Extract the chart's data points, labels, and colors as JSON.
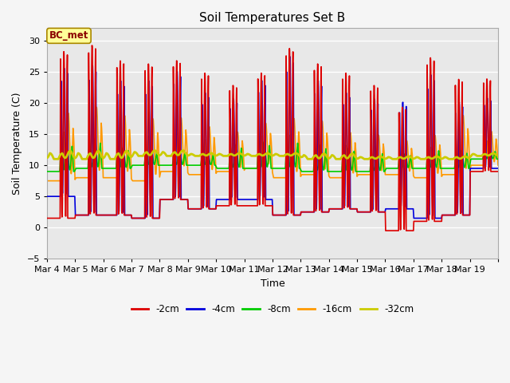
{
  "title": "Soil Temperatures Set B",
  "xlabel": "Time",
  "ylabel": "Soil Temperature (C)",
  "ylim": [
    -5,
    32
  ],
  "yticks": [
    -5,
    0,
    5,
    10,
    15,
    20,
    25,
    30
  ],
  "date_labels": [
    "Mar 4",
    "Mar 5",
    "Mar 6",
    "Mar 7",
    "Mar 8",
    "Mar 9",
    "Mar 10",
    "Mar 11",
    "Mar 12",
    "Mar 13",
    "Mar 14",
    "Mar 15",
    "Mar 16",
    "Mar 17",
    "Mar 18",
    "Mar 19"
  ],
  "n_days": 16,
  "legend_entries": [
    "-2cm",
    "-4cm",
    "-8cm",
    "-16cm",
    "-32cm"
  ],
  "line_colors": [
    "#dd0000",
    "#0000dd",
    "#00cc00",
    "#ff9900",
    "#cccc00"
  ],
  "bg_color": "#f5f5f5",
  "plot_bg_color": "#e8e8e8",
  "title_fontsize": 11,
  "label_fontsize": 9,
  "tick_fontsize": 8,
  "annotation_text": "BC_met",
  "peaks_2cm": [
    28.5,
    29.5,
    27.0,
    26.5,
    27.0,
    25.0,
    23.0,
    25.0,
    29.0,
    26.5,
    25.0,
    23.0,
    19.5,
    27.5,
    24.0,
    24.0
  ],
  "mins_2cm": [
    1.5,
    2.0,
    2.0,
    1.5,
    4.5,
    3.0,
    3.5,
    3.5,
    2.0,
    2.5,
    3.0,
    2.5,
    -0.5,
    1.0,
    2.0,
    9.0
  ],
  "peaks_4cm": [
    26.0,
    26.5,
    24.0,
    24.0,
    25.5,
    22.0,
    21.0,
    24.0,
    28.0,
    24.0,
    22.0,
    21.0,
    20.5,
    25.0,
    20.5,
    21.0
  ],
  "mins_4cm": [
    5.0,
    2.0,
    2.0,
    1.5,
    4.5,
    3.0,
    4.5,
    4.5,
    2.0,
    2.5,
    3.0,
    2.5,
    3.0,
    1.5,
    2.0,
    9.5
  ],
  "peaks_8cm": [
    14.0,
    14.5,
    13.0,
    12.5,
    12.5,
    12.0,
    13.5,
    14.0,
    14.5,
    13.5,
    13.0,
    12.5,
    12.0,
    13.0,
    12.5,
    12.5
  ],
  "mins_8cm": [
    9.0,
    9.5,
    9.5,
    10.0,
    10.0,
    10.0,
    9.5,
    9.5,
    9.5,
    9.0,
    9.0,
    9.0,
    9.5,
    9.5,
    9.5,
    11.0
  ],
  "peaks_16cm": [
    19.5,
    20.5,
    19.0,
    18.5,
    18.5,
    17.0,
    16.0,
    17.5,
    18.5,
    18.0,
    16.0,
    15.5,
    14.5,
    15.5,
    19.0,
    16.0
  ],
  "mins_16cm": [
    7.5,
    8.0,
    8.0,
    7.5,
    9.0,
    8.5,
    9.0,
    9.5,
    8.0,
    8.5,
    8.0,
    8.5,
    8.5,
    8.0,
    8.5,
    10.0
  ],
  "peaks_32cm": [
    12.5,
    12.5,
    12.5,
    12.5,
    12.5,
    12.0,
    12.0,
    12.0,
    12.0,
    12.0,
    12.0,
    11.5,
    11.5,
    11.5,
    11.5,
    12.0
  ],
  "mins_32cm": [
    11.0,
    11.0,
    11.0,
    11.5,
    11.5,
    11.5,
    11.5,
    11.5,
    11.5,
    11.0,
    11.0,
    11.0,
    11.0,
    11.0,
    11.0,
    11.5
  ]
}
